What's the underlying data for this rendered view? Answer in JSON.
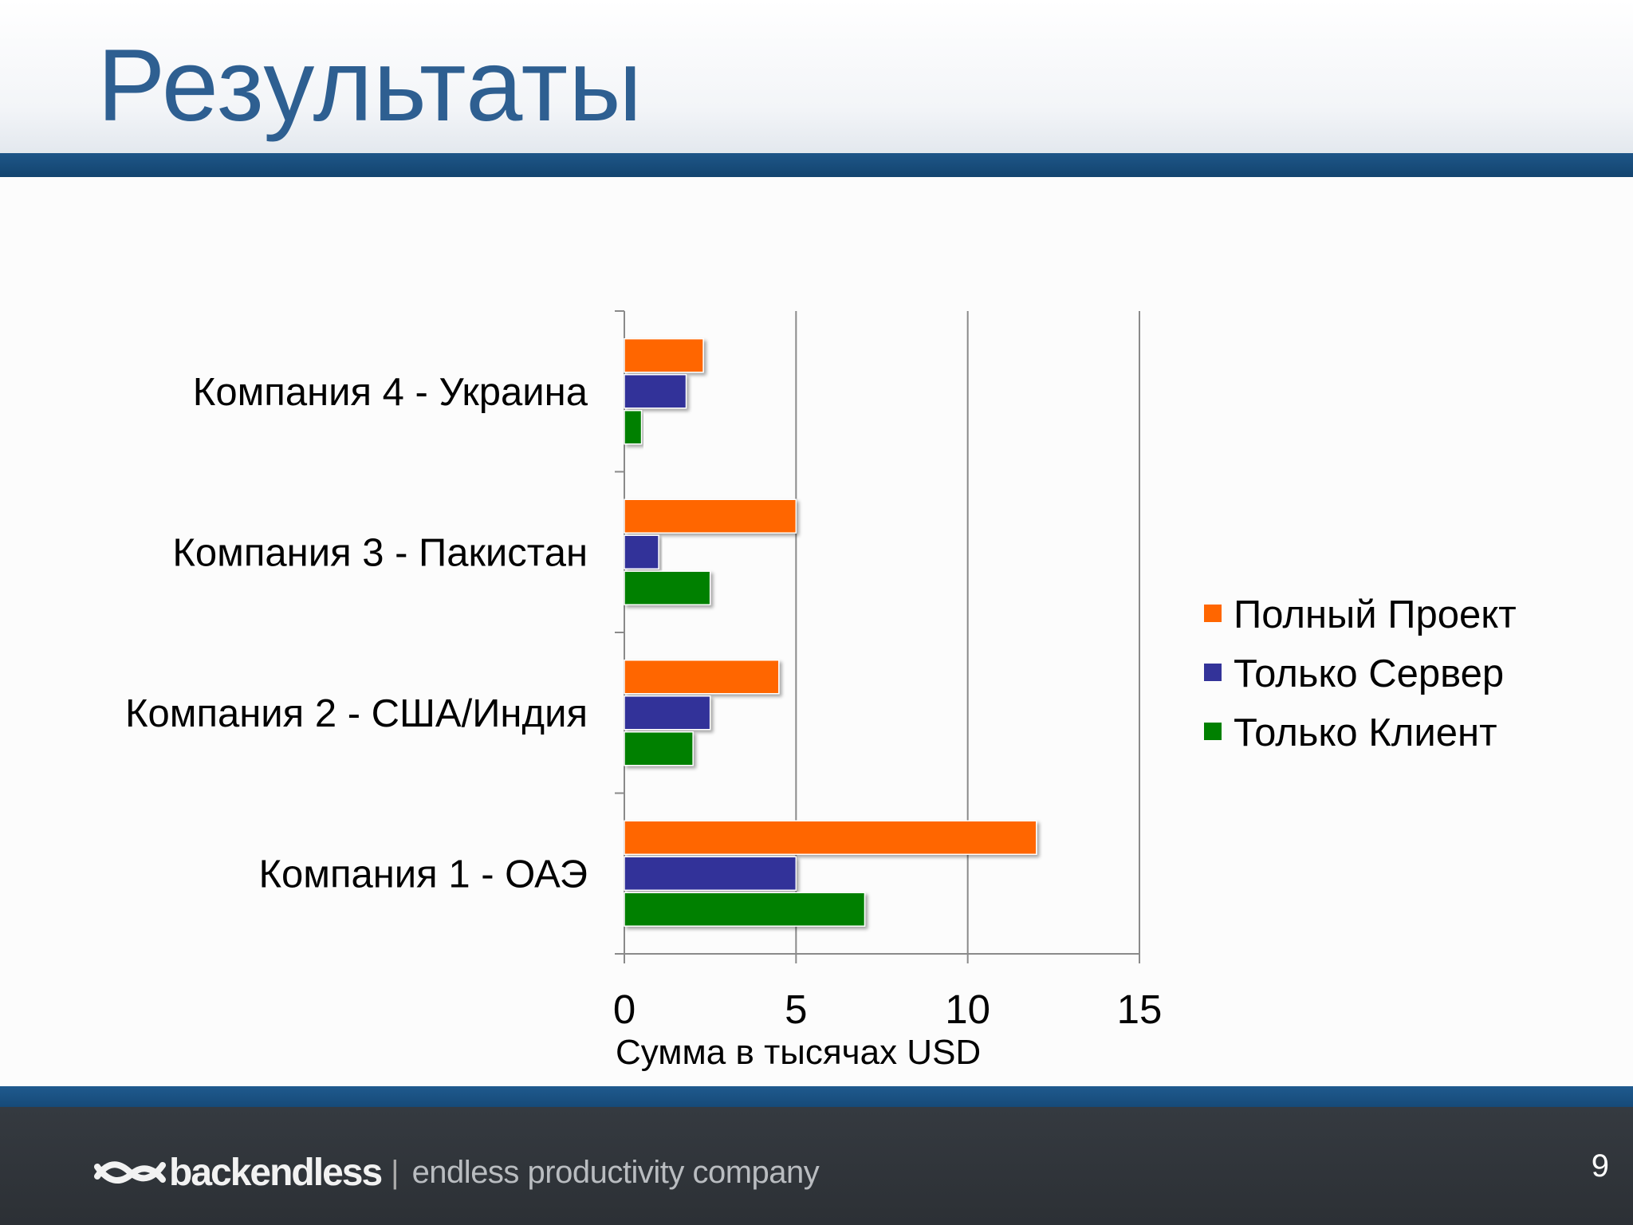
{
  "slide": {
    "title": "Результаты",
    "page_number": "9"
  },
  "footer": {
    "brand_name": "backendless",
    "separator": "|",
    "tagline": "endless productivity company"
  },
  "chart_data": {
    "type": "bar",
    "orientation": "horizontal",
    "categories": [
      "Компания 1 - ОАЭ",
      "Компания 2 - США/Индия",
      "Компания 3 - Пакистан",
      "Компания 4 - Украина"
    ],
    "series": [
      {
        "name": "Полный Проект",
        "color": "#ff6600",
        "values": [
          12,
          4.5,
          5,
          2.3
        ]
      },
      {
        "name": "Только Сервер",
        "color": "#333399",
        "values": [
          5,
          2.5,
          1,
          1.8
        ]
      },
      {
        "name": "Только Клиент",
        "color": "#008000",
        "values": [
          7,
          2,
          2.5,
          0.5
        ]
      }
    ],
    "xlabel": "Сумма в тысячах USD",
    "ylabel": "",
    "xlim": [
      0,
      15
    ],
    "xticks": [
      "0",
      "5",
      "10",
      "15"
    ],
    "grid": "vertical gridlines",
    "legend": "right"
  }
}
